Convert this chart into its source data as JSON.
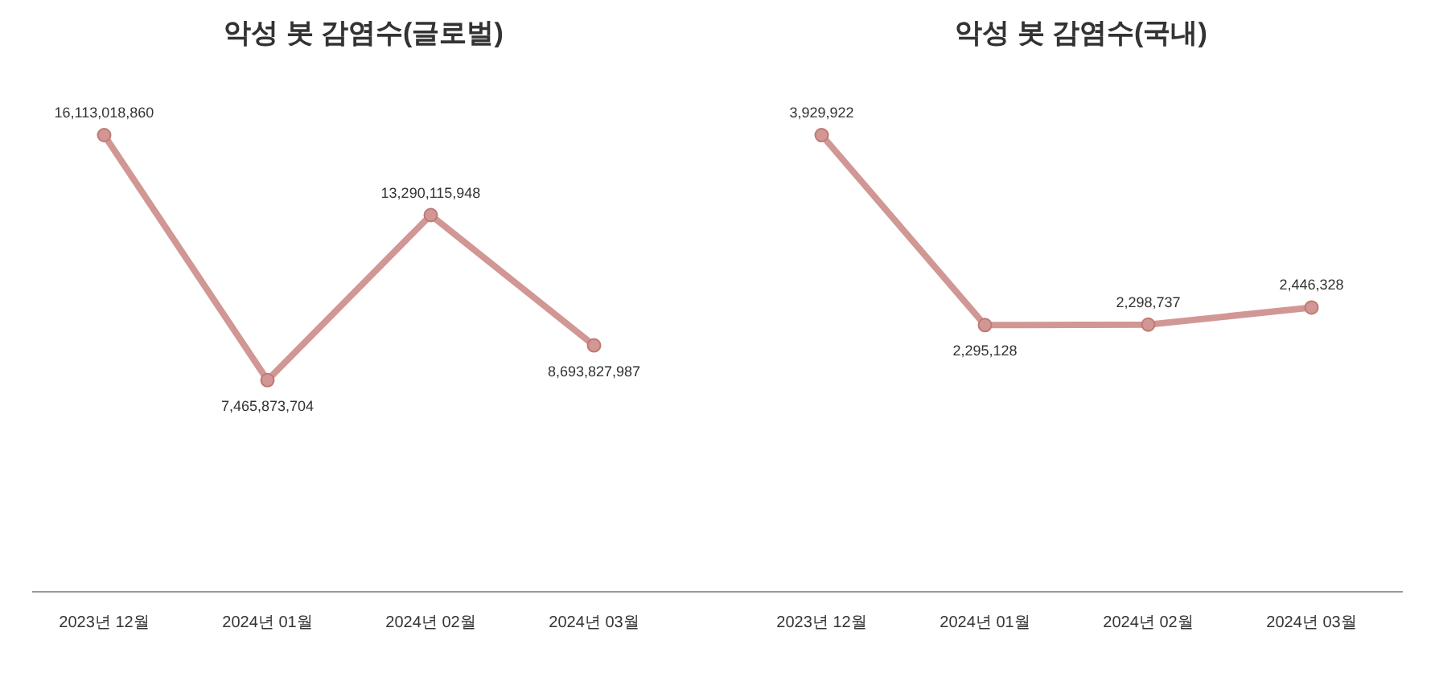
{
  "chart_data": [
    {
      "type": "line",
      "title": "악성 봇 감염수(글로벌)",
      "categories": [
        "2023년 12월",
        "2024년 01월",
        "2024년 02월",
        "2024년 03월"
      ],
      "series": [
        {
          "color": "#d19794",
          "values": [
            16113018860,
            7465873704,
            13290115948,
            8693827987
          ],
          "value_labels": [
            "16,113,018,860",
            "7,465,873,704",
            "13,290,115,948",
            "8,693,827,987"
          ]
        }
      ],
      "marker": "circle",
      "tick_labels": "x"
    },
    {
      "type": "line",
      "title": "악성 봇 감염수(국내)",
      "categories": [
        "2023년 12월",
        "2024년 01월",
        "2024년 02월",
        "2024년 03월"
      ],
      "series": [
        {
          "color": "#d19794",
          "values": [
            3929922,
            2295128,
            2298737,
            2446328
          ],
          "value_labels": [
            "3,929,922",
            "2,295,128",
            "2,298,737",
            "2,446,328"
          ]
        }
      ],
      "marker": "circle",
      "tick_labels": "x"
    }
  ]
}
